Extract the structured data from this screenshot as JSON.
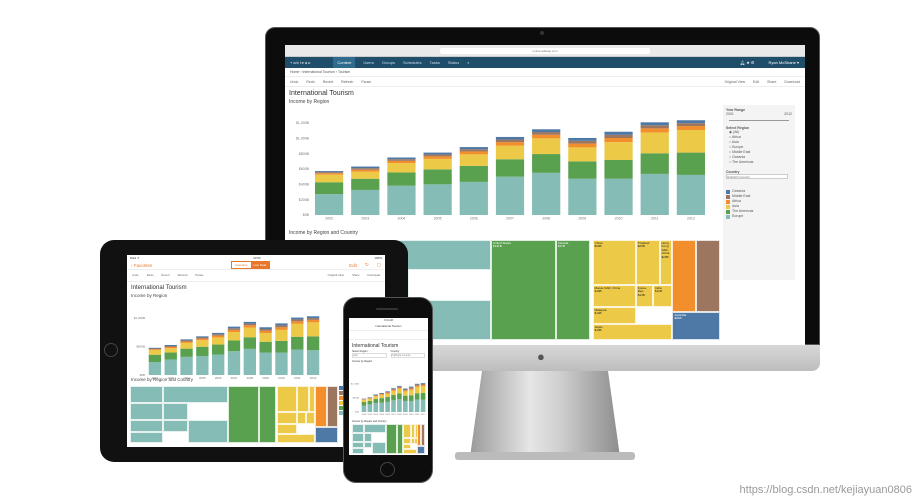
{
  "browser": {
    "url": "online.tableau.com"
  },
  "nav": {
    "logo": "+ableau",
    "items": [
      "Content",
      "Users",
      "Groups",
      "Schedules",
      "Tasks",
      "Status"
    ],
    "active": "Content",
    "user": "Ryan McShane ▾"
  },
  "breadcrumb": [
    "Home",
    "International Tourism",
    "Tourism"
  ],
  "toolbar": {
    "left": [
      "Undo",
      "Redo",
      "Revert",
      "Refresh",
      "Pause"
    ],
    "right": [
      "Original View",
      "Edit",
      "Share",
      "Download"
    ]
  },
  "dashboard": {
    "title": "International Tourism",
    "chart_title": "Income by Region",
    "treemap_title": "Income by Region and Country"
  },
  "filters": {
    "year_range_label": "Year Range",
    "year_min": "2001",
    "year_max": "2012",
    "region_label": "Select Region",
    "regions": [
      "(All)",
      "Africa",
      "Asia",
      "Europe",
      "Middle East",
      "Oceania",
      "The Americas"
    ],
    "selected_region": "(All)",
    "country_label": "Country",
    "country_placeholder": "Highlight Country"
  },
  "legend": [
    "Oceania",
    "Middle East",
    "Africa",
    "Asia",
    "The Americas",
    "Europe"
  ],
  "colors": {
    "Europe": "#86bcb6",
    "The Americas": "#59a14f",
    "Asia": "#edc948",
    "Africa": "#f28e2b",
    "Middle East": "#9d7660",
    "Oceania": "#4e79a7",
    "nav": "#1f4e6b",
    "accent": "#e8762b"
  },
  "chart_data": {
    "type": "bar",
    "stacked": true,
    "title": "Income by Region",
    "categories": [
      "2002",
      "2003",
      "2004",
      "2005",
      "2006",
      "2007",
      "2008",
      "2009",
      "2010",
      "2011",
      "2012"
    ],
    "yticks": [
      "$0B",
      "$200B",
      "$400B",
      "$600B",
      "$800B",
      "$1,000B",
      "$1,200B"
    ],
    "ylim": [
      0,
      1200
    ],
    "grid": false,
    "series": [
      {
        "name": "Europe",
        "values": [
          273,
          327,
          382,
          400,
          432,
          500,
          550,
          473,
          473,
          536,
          523
        ]
      },
      {
        "name": "The Americas",
        "values": [
          154,
          146,
          173,
          195,
          209,
          227,
          245,
          227,
          245,
          269,
          291
        ]
      },
      {
        "name": "Asia",
        "values": [
          100,
          91,
          122,
          137,
          150,
          178,
          205,
          182,
          232,
          272,
          295
        ]
      },
      {
        "name": "Africa",
        "values": [
          18,
          27,
          29,
          33,
          38,
          45,
          47,
          49,
          54,
          53,
          51
        ]
      },
      {
        "name": "Middle East",
        "values": [
          14,
          20,
          22,
          25,
          29,
          34,
          35,
          37,
          41,
          40,
          38
        ]
      },
      {
        "name": "Oceania",
        "values": [
          14,
          21,
          22,
          24,
          28,
          34,
          36,
          37,
          41,
          39,
          38
        ]
      }
    ]
  },
  "treemap": [
    {
      "region": "Europe",
      "label": "Greece\n$14B"
    },
    {
      "region": "Europe",
      "label": "Sweden\n$13B"
    },
    {
      "region": "Europe",
      "label": "Poland\n$9B"
    },
    {
      "region": "Europe",
      "label": "Czech Republic"
    },
    {
      "region": "Europe",
      "label": "Norway"
    },
    {
      "region": "Europe",
      "label": "Ukraine"
    },
    {
      "region": "Europe",
      "label": "Denmark"
    },
    {
      "region": "Europe",
      "label": "Hungary"
    },
    {
      "region": "The Americas",
      "label": "United States\n$141B"
    },
    {
      "region": "The Americas",
      "label": "Canada\n$17B"
    },
    {
      "region": "Asia",
      "label": "China\n$50B"
    },
    {
      "region": "Asia",
      "label": "Thailand\n$26B"
    },
    {
      "region": "Asia",
      "label": "Hong Kong SAR, China $23B"
    },
    {
      "region": "Asia",
      "label": "Macao SAR, China\n$14B"
    },
    {
      "region": "Asia",
      "label": "Korea, Rep.\n$13B"
    },
    {
      "region": "Asia",
      "label": "India\n$11B"
    },
    {
      "region": "Asia",
      "label": "Malaysia\n$14B"
    },
    {
      "region": "Asia",
      "label": "Japan\n$13B"
    },
    {
      "region": "Africa",
      "label": ""
    },
    {
      "region": "Middle East",
      "label": ""
    },
    {
      "region": "Oceania",
      "label": "Australia\n$31B"
    }
  ],
  "tablet": {
    "status_left": "iPad ✦",
    "time": "10:53",
    "status_right": "100%",
    "back": "‹ Favorites",
    "seg": [
      "Favorites",
      "Live Data"
    ],
    "seg_on": "Live Data",
    "edit": "Edit",
    "tools": [
      "Undo",
      "Redo",
      "Revert",
      "Refresh",
      "Pause"
    ],
    "tools_right": [
      "Original View",
      "Share",
      "Download"
    ]
  },
  "phone": {
    "time": "9:41 AM",
    "title": "International Tourism",
    "region_label": "Select Region",
    "region_value": "(All)",
    "country_label": "Country",
    "country_value": "Highlight Country"
  },
  "watermark": "https://blog.csdn.net/kejiayuan0806"
}
